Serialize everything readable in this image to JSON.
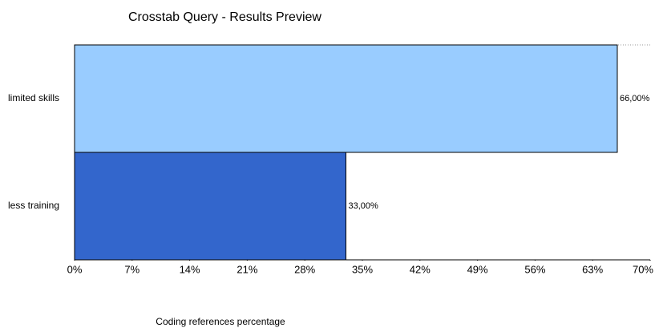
{
  "chart_data": {
    "type": "barh",
    "title": "Crosstab Query - Results Preview",
    "xlabel": "Coding references percentage",
    "categories": [
      "limited skills",
      "less training"
    ],
    "values": [
      66,
      33
    ],
    "value_labels": [
      "66,00%",
      "33,00%"
    ],
    "colors": [
      "#99ccff",
      "#3366cc"
    ],
    "xlim": [
      0,
      70
    ],
    "xticks": [
      {
        "value": 0,
        "label": "0%"
      },
      {
        "value": 7,
        "label": "7%"
      },
      {
        "value": 14,
        "label": "14%"
      },
      {
        "value": 21,
        "label": "21%"
      },
      {
        "value": 28,
        "label": "28%"
      },
      {
        "value": 35,
        "label": "35%"
      },
      {
        "value": 42,
        "label": "42%"
      },
      {
        "value": 49,
        "label": "49%"
      },
      {
        "value": 56,
        "label": "56%"
      },
      {
        "value": 63,
        "label": "63%"
      },
      {
        "value": 70,
        "label": "70%"
      }
    ]
  }
}
